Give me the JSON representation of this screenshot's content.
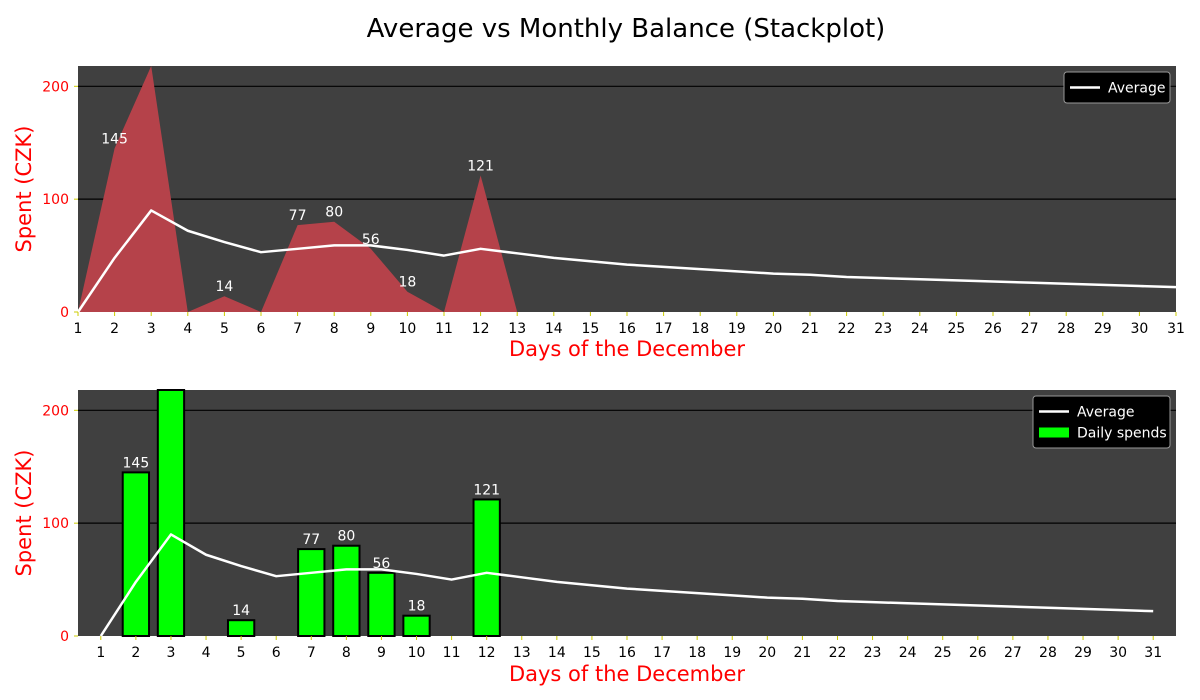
{
  "suptitle": "Average vs Monthly Balance (Stackplot)",
  "colors": {
    "plot_bg": "#404040",
    "area": "#b5424a",
    "bar": "#00ff00",
    "bar_edge": "#000000",
    "average": "#ffffff",
    "gridline": "#000000",
    "ytick": "#ff0000",
    "xtick_mark": "#cccc00",
    "legend_bg": "#000000"
  },
  "chart_data": [
    {
      "type": "area",
      "xlabel": "Days of the December",
      "ylabel": "Spent (CZK)",
      "x": [
        1,
        2,
        3,
        4,
        5,
        6,
        7,
        8,
        9,
        10,
        11,
        12,
        13,
        14,
        15,
        16,
        17,
        18,
        19,
        20,
        21,
        22,
        23,
        24,
        25,
        26,
        27,
        28,
        29,
        30,
        31
      ],
      "xlim": [
        1,
        31
      ],
      "ylim": [
        0,
        218
      ],
      "yticks": [
        0,
        100,
        200
      ],
      "grid": "horizontal",
      "legend_position": "upper-right",
      "series": [
        {
          "name": "",
          "kind": "area",
          "values": [
            0,
            145,
            218,
            0,
            14,
            0,
            77,
            80,
            56,
            18,
            0,
            121,
            0,
            0,
            0,
            0,
            0,
            0,
            0,
            0,
            0,
            0,
            0,
            0,
            0,
            0,
            0,
            0,
            0,
            0,
            0
          ],
          "data_labels": [
            {
              "x": 2,
              "y": 145,
              "text": "145"
            },
            {
              "x": 5,
              "y": 14,
              "text": "14"
            },
            {
              "x": 7,
              "y": 77,
              "text": "77"
            },
            {
              "x": 8,
              "y": 80,
              "text": "80"
            },
            {
              "x": 9,
              "y": 56,
              "text": "56"
            },
            {
              "x": 10,
              "y": 18,
              "text": "18"
            },
            {
              "x": 12,
              "y": 121,
              "text": "121"
            }
          ]
        },
        {
          "name": "Average",
          "kind": "line",
          "values": [
            0,
            48,
            90,
            72,
            62,
            53,
            56,
            59,
            59,
            55,
            50,
            56,
            52,
            48,
            45,
            42,
            40,
            38,
            36,
            34,
            33,
            31,
            30,
            29,
            28,
            27,
            26,
            25,
            24,
            23,
            22
          ]
        }
      ]
    },
    {
      "type": "bar",
      "xlabel": "Days of the December",
      "ylabel": "Spent (CZK)",
      "x": [
        1,
        2,
        3,
        4,
        5,
        6,
        7,
        8,
        9,
        10,
        11,
        12,
        13,
        14,
        15,
        16,
        17,
        18,
        19,
        20,
        21,
        22,
        23,
        24,
        25,
        26,
        27,
        28,
        29,
        30,
        31
      ],
      "xlim": [
        0.35,
        31.65
      ],
      "ylim": [
        0,
        218
      ],
      "yticks": [
        0,
        100,
        200
      ],
      "grid": "horizontal",
      "legend_position": "upper-right",
      "series": [
        {
          "name": "Daily spends",
          "kind": "bar",
          "values": [
            0,
            145,
            218,
            0,
            14,
            0,
            77,
            80,
            56,
            18,
            0,
            121,
            0,
            0,
            0,
            0,
            0,
            0,
            0,
            0,
            0,
            0,
            0,
            0,
            0,
            0,
            0,
            0,
            0,
            0,
            0
          ],
          "data_labels": [
            {
              "x": 2,
              "y": 145,
              "text": "145"
            },
            {
              "x": 5,
              "y": 14,
              "text": "14"
            },
            {
              "x": 7,
              "y": 77,
              "text": "77"
            },
            {
              "x": 8,
              "y": 80,
              "text": "80"
            },
            {
              "x": 9,
              "y": 56,
              "text": "56"
            },
            {
              "x": 10,
              "y": 18,
              "text": "18"
            },
            {
              "x": 12,
              "y": 121,
              "text": "121"
            }
          ]
        },
        {
          "name": "Average",
          "kind": "line",
          "values": [
            0,
            48,
            90,
            72,
            62,
            53,
            56,
            59,
            59,
            55,
            50,
            56,
            52,
            48,
            45,
            42,
            40,
            38,
            36,
            34,
            33,
            31,
            30,
            29,
            28,
            27,
            26,
            25,
            24,
            23,
            22
          ]
        }
      ]
    }
  ]
}
